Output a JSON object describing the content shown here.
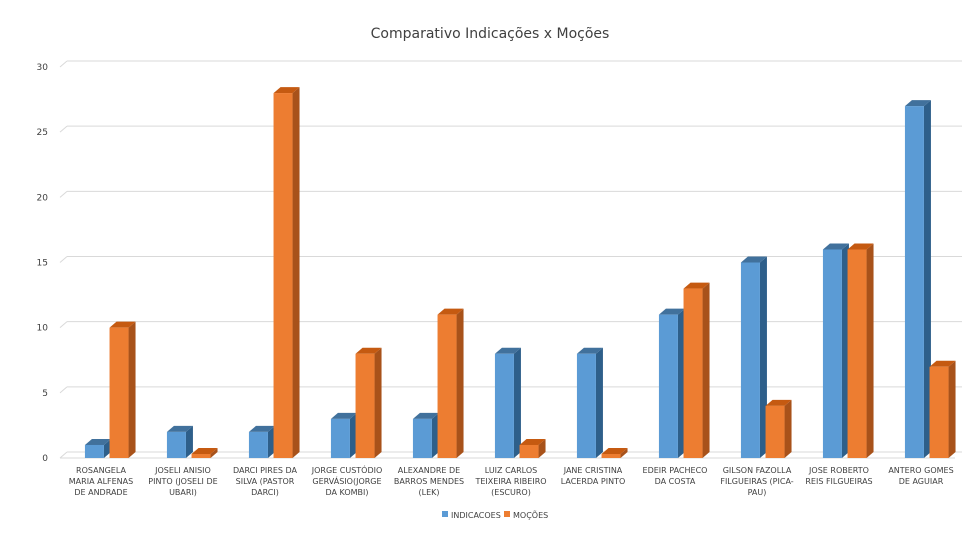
{
  "chart_data": {
    "type": "bar",
    "title": "Comparativo Indicações x Moções",
    "xlabel": "",
    "ylabel": "",
    "ylim": [
      0,
      30
    ],
    "yticks": [
      0,
      5,
      10,
      15,
      20,
      25,
      30
    ],
    "grid": true,
    "legend_position": "bottom",
    "categories": [
      [
        "ROSANGELA",
        "MARIA ALFENAS",
        "DE ANDRADE"
      ],
      [
        "JOSELI ANISIO",
        "PINTO (JOSELI DE",
        "UBARI)"
      ],
      [
        "DARCI PIRES DA",
        "SILVA (PASTOR",
        "DARCI)"
      ],
      [
        "JORGE CUSTÓDIO",
        "GERVÁSIO(JORGE",
        "DA KOMBI)"
      ],
      [
        "ALEXANDRE DE",
        "BARROS MENDES",
        "(LEK)"
      ],
      [
        "LUIZ CARLOS",
        "TEIXEIRA RIBEIRO",
        "(ESCURO)"
      ],
      [
        "JANE CRISTINA",
        "LACERDA PINTO"
      ],
      [
        "EDEIR PACHECO",
        "DA COSTA"
      ],
      [
        "GILSON FAZOLLA",
        "FILGUEIRAS (PICA-",
        "PAU)"
      ],
      [
        "JOSE ROBERTO",
        "REIS FILGUEIRAS"
      ],
      [
        "ANTERO GOMES",
        "DE AGUIAR"
      ]
    ],
    "series": [
      {
        "name": "INDICACOES",
        "color": "#5B9BD5",
        "side_color": "#2E5F8A",
        "top_color": "#41719C",
        "values": [
          1,
          2,
          2,
          3,
          3,
          8,
          8,
          11,
          15,
          16,
          27
        ]
      },
      {
        "name": "MOÇÕES",
        "color": "#ED7D31",
        "side_color": "#A8521A",
        "top_color": "#C55A11",
        "values": [
          10,
          0,
          28,
          8,
          11,
          1,
          0,
          13,
          4,
          16,
          7
        ]
      }
    ]
  }
}
